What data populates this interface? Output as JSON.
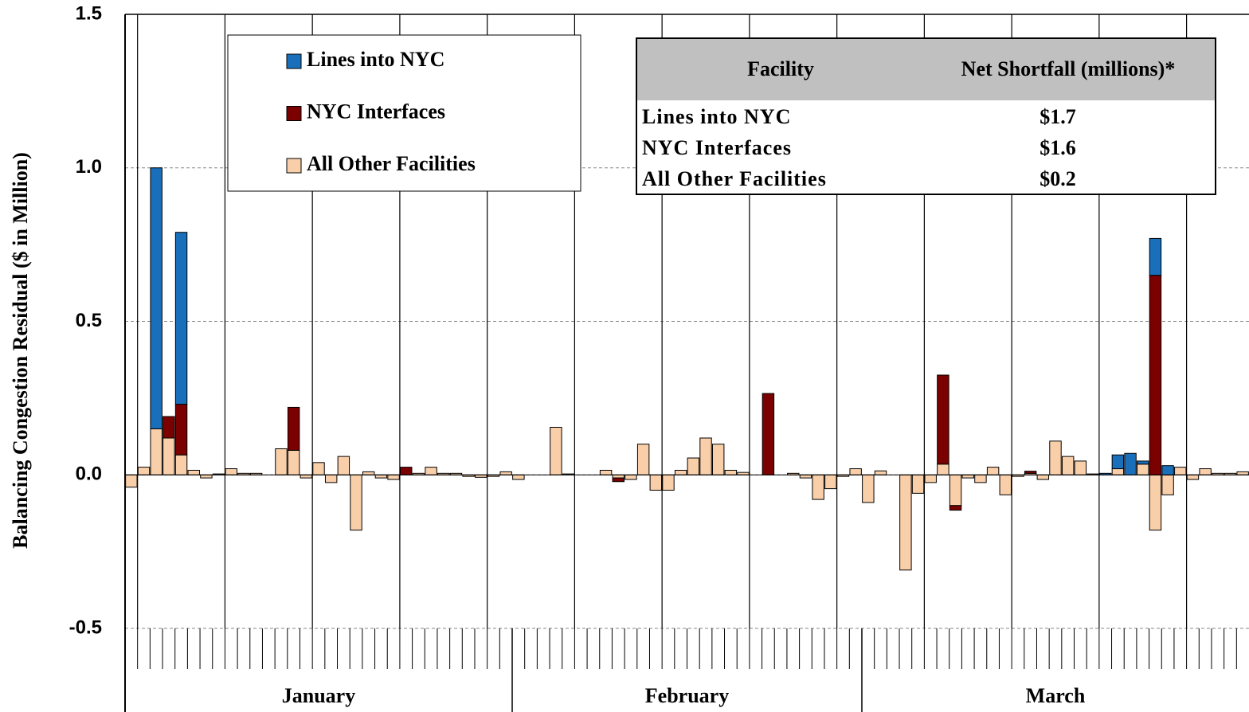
{
  "chart_data": {
    "type": "stacked_bar",
    "y_label": "Balancing Congestion Residual ($ in Million)",
    "ylim": [
      -0.5,
      1.5
    ],
    "yticks": [
      {
        "value": -0.5,
        "label": "-0.5"
      },
      {
        "value": 0,
        "label": "0.0"
      },
      0.5,
      {
        "value": 1,
        "label": "1.0"
      },
      1.5
    ],
    "grid": true,
    "categories": [
      null,
      null,
      null,
      null,
      null,
      null,
      null,
      null,
      null,
      null,
      null,
      null,
      null,
      null,
      null,
      null,
      null,
      null,
      null,
      null,
      null,
      null,
      null,
      null,
      null,
      null,
      null,
      null,
      null,
      null,
      null,
      null,
      null,
      null,
      null,
      null,
      null,
      null,
      null,
      null,
      null,
      null,
      null,
      null,
      null,
      null,
      null,
      null,
      null,
      null,
      null,
      null,
      null,
      null,
      null,
      null,
      null,
      null,
      null,
      null,
      null,
      null,
      null,
      null,
      null,
      null,
      null,
      null,
      null,
      null,
      null,
      null,
      null,
      null,
      null,
      null,
      null,
      null,
      null,
      null,
      null,
      null,
      null,
      null,
      null,
      null,
      null,
      null,
      null,
      null
    ],
    "groups": [
      {
        "label": "January",
        "count": 31
      },
      {
        "label": "February",
        "count": 28
      },
      {
        "label": "March",
        "count": 31
      }
    ],
    "series": [
      {
        "name": "All Other Facilities",
        "color": "#f9cfaa",
        "values": [
          -0.04,
          0.025,
          0.15,
          0.12,
          0.065,
          0.015,
          -0.01,
          0.003,
          0.02,
          0.005,
          0.005,
          0,
          0.085,
          0.08,
          -0.01,
          0.04,
          -0.025,
          0.06,
          -0.18,
          0.01,
          -0.01,
          -0.015,
          0,
          0.005,
          0.025,
          0.005,
          0.005,
          -0.005,
          -0.008,
          -0.005,
          0.01,
          -0.015,
          0,
          0,
          0.155,
          0.003,
          0,
          0,
          0.015,
          -0.01,
          -0.015,
          0.1,
          -0.05,
          -0.05,
          0.015,
          0.055,
          0.12,
          0.1,
          0.015,
          0.008,
          0,
          0,
          0,
          0.005,
          -0.01,
          -0.08,
          -0.045,
          -0.005,
          0.02,
          -0.09,
          0.013,
          0,
          -0.31,
          -0.06,
          -0.025,
          0.035,
          -0.1,
          -0.01,
          -0.025,
          0.025,
          -0.065,
          -0.005,
          0.005,
          -0.015,
          0.11,
          0.06,
          0.045,
          0.003,
          0,
          0.02,
          0,
          0.035,
          -0.18,
          -0.065,
          0.025,
          -0.015,
          0.02,
          0.005,
          0.005,
          0.01
        ]
      },
      {
        "name": "NYC Interfaces",
        "color": "#7b0000",
        "values": [
          0,
          0,
          0,
          0.07,
          0.165,
          0,
          0,
          0,
          0,
          0,
          0,
          0,
          0,
          0.14,
          0,
          0,
          0,
          0,
          0,
          0,
          0,
          0,
          0.025,
          0,
          0,
          0,
          0,
          0,
          0,
          0,
          0,
          0,
          0,
          0,
          0,
          0,
          0,
          0,
          0,
          -0.012,
          0,
          0,
          0,
          0,
          0,
          0,
          0,
          0,
          0,
          0,
          0,
          0.265,
          0,
          0,
          0,
          0,
          0,
          0,
          0,
          0,
          0,
          0,
          0,
          0,
          0,
          0.29,
          -0.015,
          0,
          0,
          0,
          0,
          0,
          0.007,
          0,
          0,
          0,
          0,
          0,
          0,
          0,
          0,
          0,
          0.65,
          0,
          0,
          0,
          0,
          0,
          0,
          0
        ]
      },
      {
        "name": "Lines into NYC",
        "color": "#1a6fba",
        "values": [
          0,
          0,
          0.85,
          0,
          0.56,
          0,
          0,
          0,
          0,
          0,
          0,
          0,
          0,
          0,
          0,
          0,
          0,
          0,
          0,
          0,
          0,
          0,
          0,
          0,
          0,
          0,
          0,
          0,
          0,
          0,
          0,
          0,
          0,
          0,
          0,
          0,
          0,
          0,
          0,
          0,
          0,
          0,
          0,
          0,
          0,
          0,
          0,
          0,
          0,
          0,
          0,
          0,
          0,
          0,
          0,
          0,
          0,
          0,
          0,
          0,
          0,
          0,
          0,
          0,
          0,
          0,
          0,
          0,
          0,
          0,
          0,
          0,
          0,
          0,
          0,
          0,
          0,
          0,
          0.005,
          0.045,
          0.07,
          0.01,
          0.12,
          0.03,
          0,
          0,
          0,
          0,
          0,
          0
        ]
      }
    ],
    "legend_order": [
      2,
      1,
      0
    ],
    "table": {
      "header": [
        "Facility",
        "Net Shortfall (millions)*"
      ],
      "rows": [
        [
          "Lines into NYC",
          "$1.7"
        ],
        [
          "NYC Interfaces",
          "$1.6"
        ],
        [
          "All Other Facilities",
          "$0.2"
        ]
      ]
    }
  }
}
